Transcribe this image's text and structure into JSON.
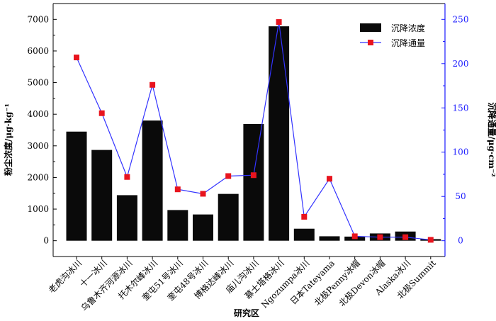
{
  "chart_data": {
    "type": "bar+line",
    "categories": [
      "老虎沟冰川",
      "十一冰川",
      "乌鲁木齐河源冰川",
      "托木尔峰冰川",
      "奎屯51号冰川",
      "奎屯48号冰川",
      "博格达峰冰川",
      "庙儿沟冰川",
      "慕士塔格冰川",
      "Ngozumpa冰川",
      "日本Tateyama",
      "北极Penny冰帽",
      "北极Devon冰帽",
      "Alaska冰川",
      "北极Summit"
    ],
    "series": [
      {
        "name": "沉降浓度",
        "kind": "bar",
        "axis": "left",
        "values": [
          3450,
          2870,
          1440,
          3800,
          970,
          830,
          1480,
          3690,
          6780,
          380,
          140,
          130,
          230,
          290,
          50
        ]
      },
      {
        "name": "沉降通量",
        "kind": "line",
        "axis": "right",
        "values": [
          207,
          144,
          72,
          176,
          58,
          53,
          73,
          74,
          247,
          27,
          70,
          5,
          4,
          4,
          1
        ]
      }
    ],
    "xlabel": "研究区",
    "ylabel_left": "粉尘浓度/μg·kg⁻¹",
    "ylabel_right": "沉降通量/μg·cm⁻²",
    "ylim_left": [
      -500,
      7500
    ],
    "yticks_left": [
      0,
      1000,
      2000,
      3000,
      4000,
      5000,
      6000,
      7000
    ],
    "ylim_right": [
      -17.86,
      267.86
    ],
    "yticks_right": [
      0,
      50,
      100,
      150,
      200,
      250
    ],
    "legend_position": "top-right",
    "grid": false,
    "colors": {
      "bar": "#0a0a0a",
      "line": "#3333ff",
      "marker": "#e8141e",
      "right_axis": "#1a1aff"
    }
  }
}
